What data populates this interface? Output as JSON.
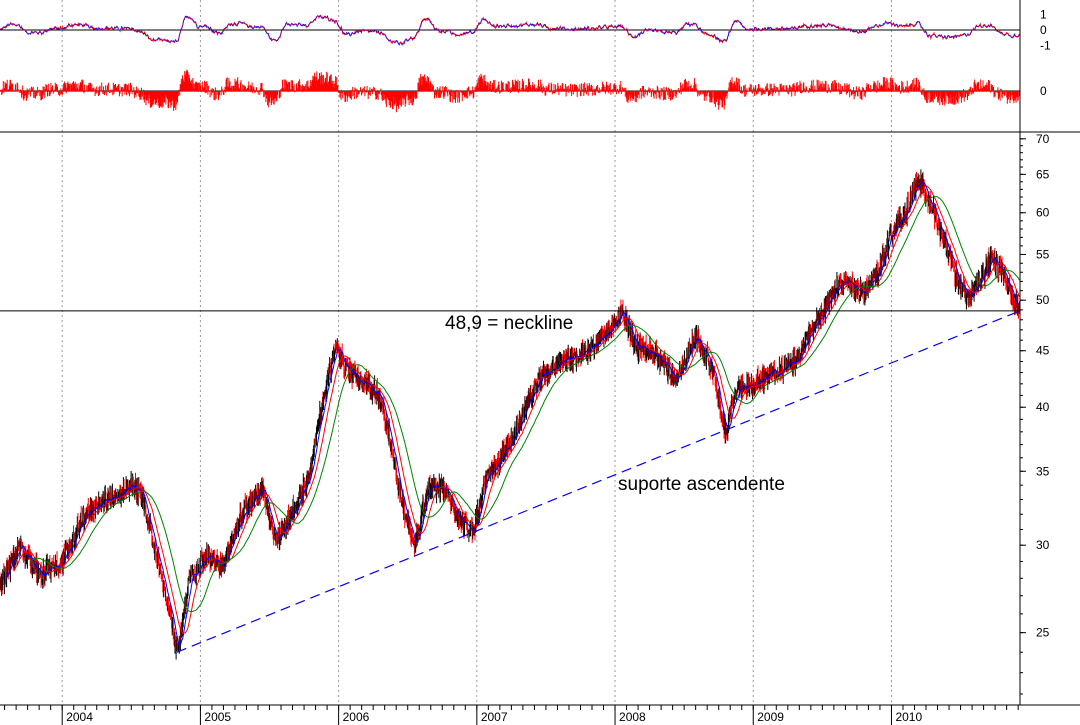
{
  "chart_data": [
    {
      "panel": "oscillator",
      "type": "line",
      "y_ticks": [
        "1",
        "0",
        "-1"
      ],
      "ylim": [
        -1.6,
        1.6
      ],
      "zero_line": true,
      "series": [
        {
          "color": "#0000ff",
          "style": "solid"
        },
        {
          "color": "#ff0000",
          "style": "dotted"
        }
      ]
    },
    {
      "panel": "histogram",
      "type": "bar",
      "y_ticks": [
        "0"
      ],
      "color": "#ff0000",
      "zero_line": true
    },
    {
      "panel": "price",
      "type": "candlestick",
      "y_scale": "log",
      "ylim": [
        21.5,
        71
      ],
      "y_ticks": [
        "70",
        "65",
        "60",
        "55",
        "50",
        "45",
        "40",
        "35",
        "30",
        "25"
      ],
      "x_ticks": [
        "2004",
        "2005",
        "2006",
        "2007",
        "2008",
        "2009",
        "2010"
      ],
      "x_range": [
        2003.55,
        2010.93
      ],
      "grid": {
        "vertical": true,
        "horizontal": false
      },
      "candle_colors": {
        "up": "#000000",
        "down": "#ff0000"
      },
      "moving_average_colors": [
        "#0000ff",
        "#ff0000",
        "#008000"
      ],
      "close_points": [
        [
          2003.55,
          27.5
        ],
        [
          2003.68,
          29.8
        ],
        [
          2003.85,
          28.3
        ],
        [
          2004.0,
          29.0
        ],
        [
          2004.15,
          31.8
        ],
        [
          2004.35,
          33.2
        ],
        [
          2004.5,
          34.0
        ],
        [
          2004.58,
          33.3
        ],
        [
          2004.68,
          29.5
        ],
        [
          2004.76,
          26.6
        ],
        [
          2004.83,
          24.0
        ],
        [
          2004.92,
          27.8
        ],
        [
          2005.05,
          29.5
        ],
        [
          2005.15,
          28.5
        ],
        [
          2005.3,
          32.0
        ],
        [
          2005.45,
          33.8
        ],
        [
          2005.55,
          30.0
        ],
        [
          2005.68,
          32.5
        ],
        [
          2005.78,
          34.5
        ],
        [
          2005.85,
          38.5
        ],
        [
          2005.92,
          42.5
        ],
        [
          2005.98,
          45.3
        ],
        [
          2006.07,
          43.0
        ],
        [
          2006.2,
          42.0
        ],
        [
          2006.3,
          41.0
        ],
        [
          2006.38,
          37.0
        ],
        [
          2006.45,
          33.0
        ],
        [
          2006.55,
          30.0
        ],
        [
          2006.65,
          34.0
        ],
        [
          2006.78,
          33.5
        ],
        [
          2006.88,
          31.5
        ],
        [
          2006.98,
          31.0
        ],
        [
          2007.05,
          34.0
        ],
        [
          2007.2,
          36.5
        ],
        [
          2007.3,
          38.5
        ],
        [
          2007.45,
          42.5
        ],
        [
          2007.6,
          44.0
        ],
        [
          2007.72,
          44.5
        ],
        [
          2007.85,
          45.5
        ],
        [
          2007.98,
          47.5
        ],
        [
          2008.05,
          49.0
        ],
        [
          2008.15,
          45.5
        ],
        [
          2008.3,
          44.5
        ],
        [
          2008.45,
          42.5
        ],
        [
          2008.58,
          46.5
        ],
        [
          2008.7,
          43.5
        ],
        [
          2008.8,
          38.0
        ],
        [
          2008.88,
          41.5
        ],
        [
          2009.0,
          42.0
        ],
        [
          2009.15,
          43.0
        ],
        [
          2009.3,
          44.0
        ],
        [
          2009.45,
          47.5
        ],
        [
          2009.58,
          51.0
        ],
        [
          2009.68,
          52.0
        ],
        [
          2009.8,
          50.5
        ],
        [
          2009.9,
          53.0
        ],
        [
          2010.0,
          57.5
        ],
        [
          2010.1,
          60.0
        ],
        [
          2010.2,
          64.5
        ],
        [
          2010.3,
          60.5
        ],
        [
          2010.4,
          55.5
        ],
        [
          2010.48,
          52.0
        ],
        [
          2010.56,
          50.0
        ],
        [
          2010.65,
          52.5
        ],
        [
          2010.72,
          54.5
        ],
        [
          2010.8,
          53.0
        ],
        [
          2010.87,
          50.5
        ],
        [
          2010.93,
          49.0
        ]
      ],
      "annotations": {
        "neckline_value": 48.9,
        "neckline_label": "48,9 = neckline",
        "support_label": "suporte ascendente",
        "support_line": {
          "from": [
            2004.83,
            24.0
          ],
          "to": [
            2010.93,
            48.9
          ],
          "color": "#0000ff",
          "style": "dashed"
        }
      }
    }
  ]
}
